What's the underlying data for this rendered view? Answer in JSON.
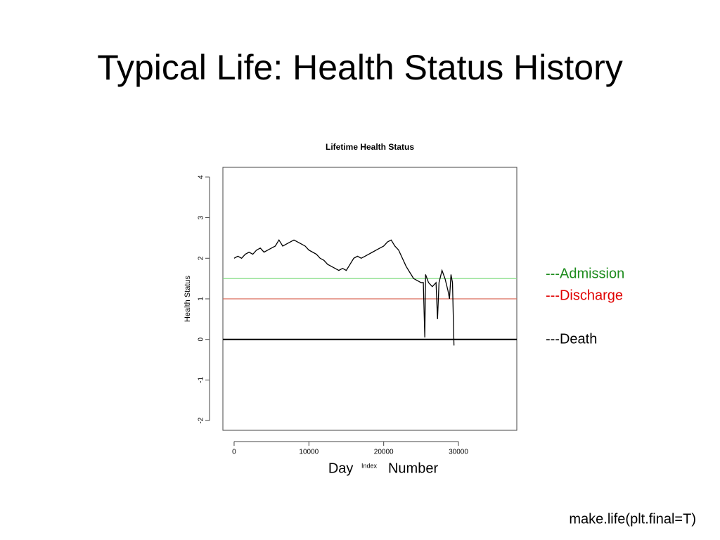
{
  "title": "Typical Life: Health Status History",
  "chart_data": {
    "type": "line",
    "title": "Lifetime Health Status",
    "x_label": "Index",
    "y_label": "Health Status",
    "xlim": [
      -1500,
      37800
    ],
    "xticks": [
      0,
      10000,
      20000,
      30000
    ],
    "ylim": [
      -2.24,
      4.24
    ],
    "yticks": [
      -2,
      -1,
      0,
      1,
      2,
      3,
      4
    ],
    "x": [
      0,
      500,
      1000,
      1500,
      2000,
      2500,
      3000,
      3500,
      4000,
      4500,
      5000,
      5500,
      6000,
      6500,
      7000,
      7500,
      8000,
      8500,
      9000,
      9500,
      10000,
      10500,
      11000,
      11500,
      12000,
      12500,
      13000,
      13500,
      14000,
      14500,
      15000,
      15500,
      16000,
      16500,
      17000,
      17500,
      18000,
      18500,
      19000,
      19500,
      20000,
      20500,
      21000,
      21500,
      22000,
      22500,
      23000,
      23500,
      24000,
      24500,
      25000,
      25300,
      25500,
      25600,
      26000,
      26500,
      27000,
      27200,
      27400,
      27800,
      28200,
      28600,
      28800,
      29000,
      29200,
      29400
    ],
    "series": [
      {
        "color": "#000000",
        "values": [
          2.0,
          2.05,
          2.0,
          2.1,
          2.15,
          2.1,
          2.2,
          2.25,
          2.15,
          2.2,
          2.25,
          2.3,
          2.45,
          2.3,
          2.35,
          2.4,
          2.45,
          2.4,
          2.35,
          2.3,
          2.2,
          2.15,
          2.1,
          2.0,
          1.95,
          1.85,
          1.8,
          1.75,
          1.7,
          1.75,
          1.7,
          1.85,
          2.0,
          2.05,
          2.0,
          2.05,
          2.1,
          2.15,
          2.2,
          2.25,
          2.3,
          2.4,
          2.45,
          2.3,
          2.2,
          2.0,
          1.8,
          1.65,
          1.5,
          1.45,
          1.4,
          1.4,
          0.05,
          1.6,
          1.4,
          1.3,
          1.4,
          0.5,
          1.4,
          1.7,
          1.5,
          1.2,
          1.0,
          1.6,
          1.4,
          -0.15
        ]
      }
    ],
    "hlines": [
      {
        "value": 1.5,
        "color": "#7fdc7f",
        "label": "---Admission",
        "label_color": "#1e8c1e"
      },
      {
        "value": 1,
        "color": "#d96a5a",
        "label": "---Discharge",
        "label_color": "#e00000"
      },
      {
        "value": 0,
        "color": "#000000",
        "label": "---Death",
        "label_color": "#000000"
      }
    ]
  },
  "x_caption": "Day Number",
  "code": "make.life(plt.final=T)"
}
